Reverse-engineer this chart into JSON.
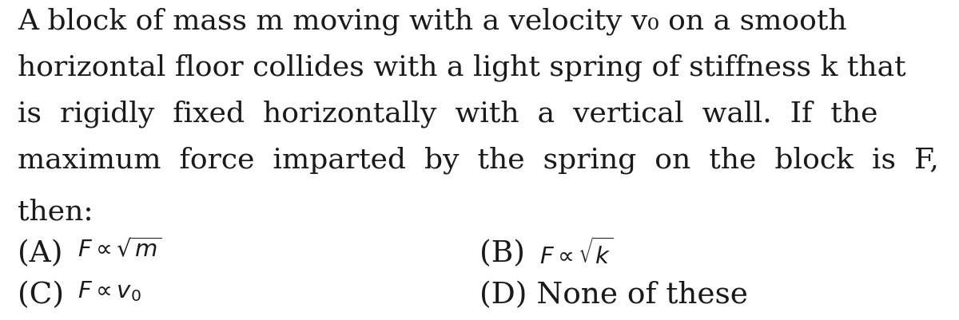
{
  "background_color": "#ffffff",
  "text_color": "#1a1a1a",
  "main_text_lines": [
    "A block of mass m moving with a velocity v₀ on a smooth",
    "horizontal floor collides with a light spring of stiffness k that",
    "is  rigidly  fixed  horizontally  with  a  vertical  wall.  If  the",
    "maximum  force  imparted  by  the  spring  on  the  block  is  F,",
    "then:"
  ],
  "option_A_label": "(A)",
  "option_A_math": "$F \\propto \\sqrt{m}$",
  "option_B_label": "(B)",
  "option_B_math": "$F \\propto \\sqrt{k}$",
  "option_C_label": "(C)",
  "option_C_math": "$F \\propto v_0$",
  "option_D_text": "(D) None of these",
  "main_fontsize": 26,
  "option_label_fontsize": 27,
  "option_math_fontsize": 21,
  "figsize": [
    12.0,
    4.02
  ],
  "dpi": 100
}
